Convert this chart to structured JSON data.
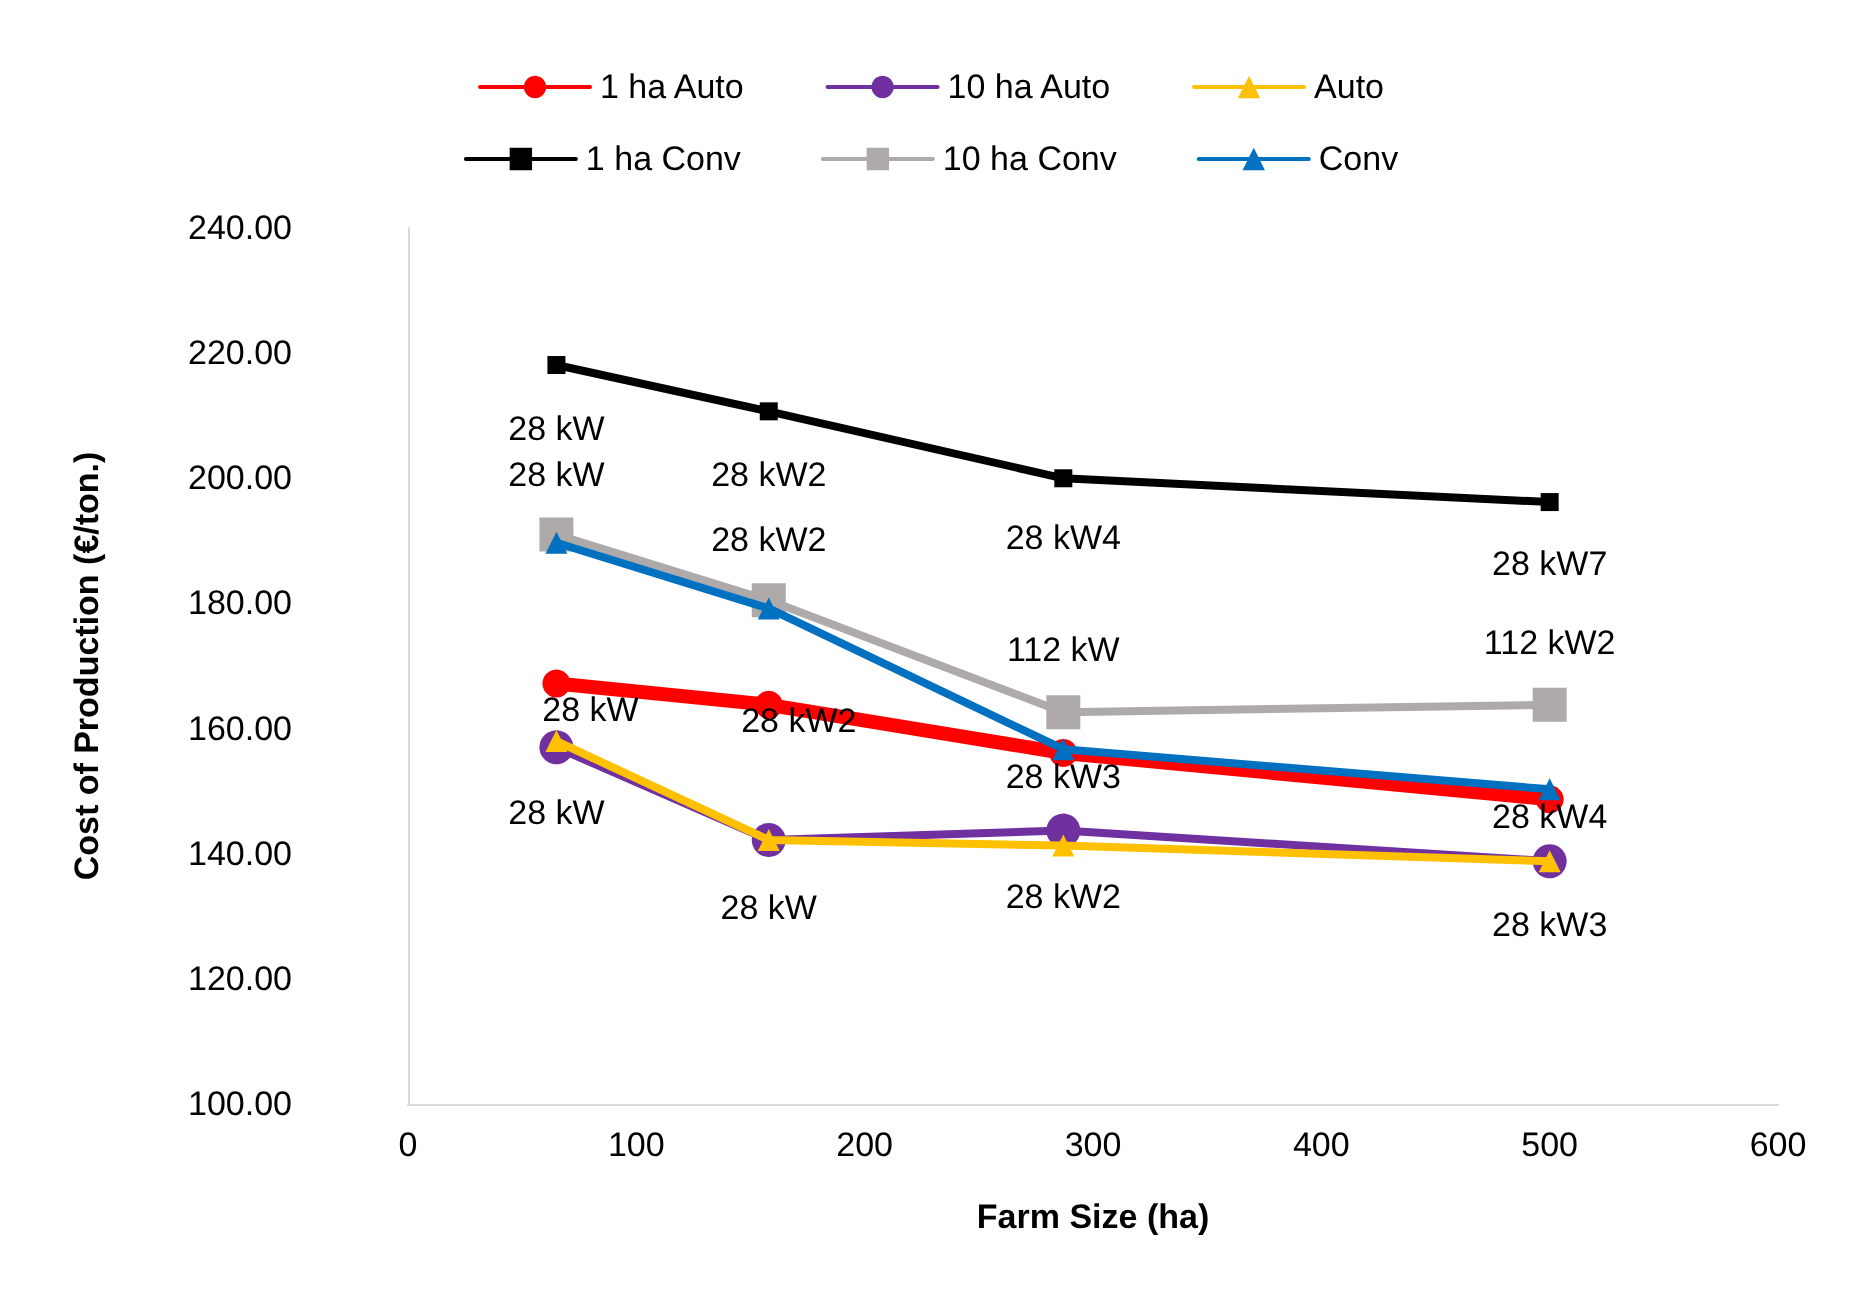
{
  "chart_data": {
    "type": "line",
    "xlabel": "Farm Size (ha)",
    "ylabel": "Cost of Production (€/ton.)",
    "x": [
      65,
      158,
      287,
      500
    ],
    "series": [
      {
        "name": "1 ha Auto",
        "color": "#ff0000",
        "marker": "circle",
        "values": [
          167.2,
          163.8,
          156.1,
          148.7
        ]
      },
      {
        "name": "10 ha Auto",
        "color": "#7030a0",
        "marker": "circle",
        "values": [
          157.0,
          142.2,
          143.7,
          138.8
        ]
      },
      {
        "name": "Auto",
        "color": "#ffc000",
        "marker": "triangle",
        "values": [
          158.0,
          142.2,
          141.3,
          138.8
        ]
      },
      {
        "name": "1 ha Conv",
        "color": "#000000",
        "marker": "square",
        "values": [
          218.1,
          210.7,
          200.0,
          196.2
        ]
      },
      {
        "name": "10 ha Conv",
        "color": "#aeaaaa",
        "marker": "square",
        "values": [
          191.0,
          180.5,
          162.6,
          163.8
        ]
      },
      {
        "name": "Conv",
        "color": "#0070c0",
        "marker": "triangle",
        "values": [
          189.7,
          179.2,
          156.7,
          150.3
        ]
      }
    ],
    "annotations": [
      {
        "text": "28 kW",
        "x": 65,
        "y": 218.1
      },
      {
        "text": "28 kW2",
        "x": 158,
        "y": 210.7
      },
      {
        "text": "28 kW4",
        "x": 287,
        "y": 200.0
      },
      {
        "text": "28 kW7",
        "x": 500,
        "y": 196.2
      },
      {
        "text": "28 kW",
        "x": 65,
        "y": 191.0
      },
      {
        "text": "28 kW2",
        "x": 158,
        "y": 180.5
      },
      {
        "text": "112 kW",
        "x": 287,
        "y": 162.6
      },
      {
        "text": "112 kW2",
        "x": 500,
        "y": 163.8
      },
      {
        "text": "28 kW",
        "x": 65,
        "y": 167.2
      },
      {
        "text": "28 kW2",
        "x": 158,
        "y": 163.8
      },
      {
        "text": "28 kW3",
        "x": 287,
        "y": 156.1
      },
      {
        "text": "28 kW4",
        "x": 500,
        "y": 148.7
      },
      {
        "text": "28 kW",
        "x": 65,
        "y": 157.0
      },
      {
        "text": "28 kW",
        "x": 158,
        "y": 142.2
      },
      {
        "text": "28 kW2",
        "x": 287,
        "y": 143.7
      },
      {
        "text": "28 kW3",
        "x": 500,
        "y": 138.8
      }
    ],
    "xlim": [
      0,
      600
    ],
    "xticks": [
      0,
      100,
      200,
      300,
      400,
      500,
      600
    ],
    "ylim": [
      100,
      240
    ],
    "yticks": [
      {
        "value": 100,
        "label": "100.00"
      },
      {
        "value": 120,
        "label": "120.00"
      },
      {
        "value": 140,
        "label": "140.00"
      },
      {
        "value": 160,
        "label": "160.00"
      },
      {
        "value": 180,
        "label": "180.00"
      },
      {
        "value": 200,
        "label": "200.00"
      },
      {
        "value": 220,
        "label": "220.00"
      },
      {
        "value": 240,
        "label": "240.00"
      }
    ],
    "grid": false,
    "legend": "top",
    "line_style": "solid"
  }
}
